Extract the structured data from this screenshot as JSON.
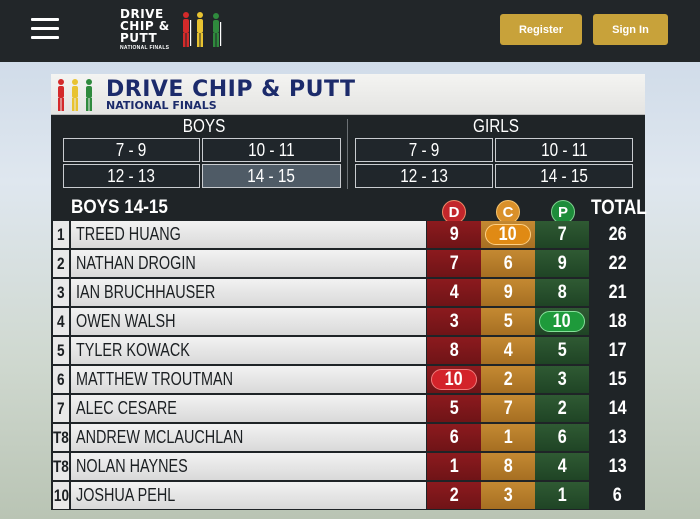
{
  "topbar": {
    "logo_lines": [
      "DRIVE",
      "CHIP &",
      "PUTT"
    ],
    "logo_sub": "NATIONAL FINALS",
    "register_label": "Register",
    "signin_label": "Sign In"
  },
  "board": {
    "title": "DRIVE CHIP & PUTT",
    "subtitle": "NATIONAL FINALS",
    "boys_label": "BOYS",
    "girls_label": "GIRLS",
    "boys_groups": [
      "7 - 9",
      "10 - 11",
      "12 - 13",
      "14 - 15"
    ],
    "girls_groups": [
      "7 - 9",
      "10 - 11",
      "12 - 13",
      "14 - 15"
    ],
    "active_group": "14 - 15",
    "section_title": "BOYS 14-15",
    "col_drive": "D",
    "col_chip": "C",
    "col_putt": "P",
    "col_total": "TOTAL",
    "rows": [
      {
        "rank": "1",
        "name": "TREED HUANG",
        "d": "9",
        "c": "10",
        "p": "7",
        "total": "26",
        "best": "c"
      },
      {
        "rank": "2",
        "name": "NATHAN DROGIN",
        "d": "7",
        "c": "6",
        "p": "9",
        "total": "22",
        "best": ""
      },
      {
        "rank": "3",
        "name": "IAN BRUCHHAUSER",
        "d": "4",
        "c": "9",
        "p": "8",
        "total": "21",
        "best": ""
      },
      {
        "rank": "4",
        "name": "OWEN WALSH",
        "d": "3",
        "c": "5",
        "p": "10",
        "total": "18",
        "best": "p"
      },
      {
        "rank": "5",
        "name": "TYLER KOWACK",
        "d": "8",
        "c": "4",
        "p": "5",
        "total": "17",
        "best": ""
      },
      {
        "rank": "6",
        "name": "MATTHEW TROUTMAN",
        "d": "10",
        "c": "2",
        "p": "3",
        "total": "15",
        "best": "d"
      },
      {
        "rank": "7",
        "name": "ALEC CESARE",
        "d": "5",
        "c": "7",
        "p": "2",
        "total": "14",
        "best": ""
      },
      {
        "rank": "T8",
        "name": "ANDREW MCLAUCHLAN",
        "d": "6",
        "c": "1",
        "p": "6",
        "total": "13",
        "best": ""
      },
      {
        "rank": "T8",
        "name": "NOLAN HAYNES",
        "d": "1",
        "c": "8",
        "p": "4",
        "total": "13",
        "best": ""
      },
      {
        "rank": "10",
        "name": "JOSHUA PEHL",
        "d": "2",
        "c": "3",
        "p": "1",
        "total": "6",
        "best": ""
      }
    ]
  },
  "colors": {
    "accent": "#c8a23a",
    "title": "#1c2b6b",
    "drive": "#c2262b",
    "chip": "#d9902a",
    "putt": "#1d8c3a"
  }
}
